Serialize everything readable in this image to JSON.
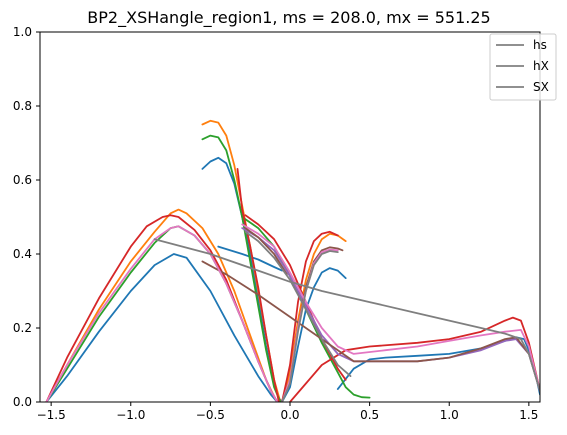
{
  "chart_data": {
    "type": "line",
    "title": "BP2_XSHangle_region1, ms = 208.0, mx = 551.25",
    "xlabel": "",
    "ylabel": "",
    "xlim": [
      -1.57,
      1.57
    ],
    "ylim": [
      0.0,
      1.0
    ],
    "xticks": [
      -1.5,
      -1.0,
      -0.5,
      0.0,
      0.5,
      1.0,
      1.5
    ],
    "xtick_labels": [
      "−1.5",
      "−1.0",
      "−0.5",
      "0.0",
      "0.5",
      "1.0",
      "1.5"
    ],
    "yticks": [
      0.0,
      0.2,
      0.4,
      0.6,
      0.8,
      1.0
    ],
    "ytick_labels": [
      "0.0",
      "0.2",
      "0.4",
      "0.6",
      "0.8",
      "1.0"
    ],
    "grid": false,
    "legend_position": "top-right",
    "legend": [
      {
        "label": "hs",
        "color": "#808080"
      },
      {
        "label": "hX",
        "color": "#808080"
      },
      {
        "label": "SX",
        "color": "#808080"
      }
    ],
    "series": [
      {
        "color": "#1f77b4",
        "points": [
          [
            -1.53,
            0.0
          ],
          [
            -1.4,
            0.07
          ],
          [
            -1.2,
            0.19
          ],
          [
            -1.0,
            0.3
          ],
          [
            -0.85,
            0.37
          ],
          [
            -0.73,
            0.4
          ],
          [
            -0.65,
            0.39
          ],
          [
            -0.5,
            0.3
          ],
          [
            -0.35,
            0.18
          ],
          [
            -0.2,
            0.07
          ],
          [
            -0.12,
            0.02
          ],
          [
            -0.08,
            0.0
          ]
        ]
      },
      {
        "color": "#1f77b4",
        "points": [
          [
            -0.55,
            0.63
          ],
          [
            -0.5,
            0.65
          ],
          [
            -0.45,
            0.66
          ],
          [
            -0.4,
            0.645
          ],
          [
            -0.35,
            0.59
          ],
          [
            -0.3,
            0.5
          ],
          [
            -0.25,
            0.4
          ],
          [
            -0.2,
            0.28
          ],
          [
            -0.15,
            0.15
          ],
          [
            -0.1,
            0.05
          ],
          [
            -0.07,
            0.01
          ],
          [
            -0.05,
            0.0
          ]
        ]
      },
      {
        "color": "#1f77b4",
        "points": [
          [
            -0.05,
            0.0
          ],
          [
            0.0,
            0.04
          ],
          [
            0.05,
            0.15
          ],
          [
            0.1,
            0.25
          ],
          [
            0.15,
            0.31
          ],
          [
            0.2,
            0.35
          ],
          [
            0.25,
            0.362
          ],
          [
            0.3,
            0.355
          ],
          [
            0.35,
            0.335
          ]
        ]
      },
      {
        "color": "#1f77b4",
        "points": [
          [
            0.3,
            0.035
          ],
          [
            0.4,
            0.09
          ],
          [
            0.5,
            0.115
          ],
          [
            0.6,
            0.12
          ],
          [
            0.8,
            0.125
          ],
          [
            1.0,
            0.13
          ],
          [
            1.2,
            0.145
          ],
          [
            1.35,
            0.165
          ],
          [
            1.42,
            0.175
          ],
          [
            1.47,
            0.17
          ],
          [
            1.52,
            0.12
          ],
          [
            1.57,
            0.02
          ]
        ]
      },
      {
        "color": "#1f77b4",
        "points": [
          [
            -0.45,
            0.42
          ],
          [
            -0.3,
            0.4
          ],
          [
            -0.2,
            0.385
          ],
          [
            -0.1,
            0.365
          ],
          [
            -0.05,
            0.355
          ]
        ]
      },
      {
        "color": "#ff7f0e",
        "points": [
          [
            -1.53,
            0.0
          ],
          [
            -1.4,
            0.1
          ],
          [
            -1.2,
            0.25
          ],
          [
            -1.0,
            0.38
          ],
          [
            -0.85,
            0.46
          ],
          [
            -0.75,
            0.51
          ],
          [
            -0.7,
            0.52
          ],
          [
            -0.65,
            0.51
          ],
          [
            -0.55,
            0.47
          ],
          [
            -0.45,
            0.4
          ],
          [
            -0.35,
            0.3
          ],
          [
            -0.25,
            0.18
          ],
          [
            -0.15,
            0.06
          ],
          [
            -0.1,
            0.015
          ],
          [
            -0.08,
            0.0
          ]
        ]
      },
      {
        "color": "#ff7f0e",
        "points": [
          [
            -0.55,
            0.75
          ],
          [
            -0.5,
            0.76
          ],
          [
            -0.45,
            0.755
          ],
          [
            -0.4,
            0.72
          ],
          [
            -0.35,
            0.64
          ],
          [
            -0.3,
            0.53
          ],
          [
            -0.25,
            0.42
          ],
          [
            -0.2,
            0.3
          ],
          [
            -0.15,
            0.18
          ],
          [
            -0.1,
            0.06
          ],
          [
            -0.06,
            0.0
          ]
        ]
      },
      {
        "color": "#ff7f0e",
        "points": [
          [
            -0.05,
            0.0
          ],
          [
            0.0,
            0.08
          ],
          [
            0.05,
            0.22
          ],
          [
            0.1,
            0.33
          ],
          [
            0.15,
            0.4
          ],
          [
            0.2,
            0.44
          ],
          [
            0.25,
            0.455
          ],
          [
            0.3,
            0.45
          ],
          [
            0.35,
            0.435
          ]
        ]
      },
      {
        "color": "#2ca02c",
        "points": [
          [
            -1.53,
            0.0
          ],
          [
            -1.4,
            0.09
          ],
          [
            -1.2,
            0.23
          ],
          [
            -1.0,
            0.35
          ],
          [
            -0.85,
            0.43
          ],
          [
            -0.75,
            0.47
          ],
          [
            -0.7,
            0.475
          ],
          [
            -0.6,
            0.45
          ],
          [
            -0.5,
            0.4
          ],
          [
            -0.4,
            0.32
          ],
          [
            -0.3,
            0.22
          ],
          [
            -0.2,
            0.11
          ],
          [
            -0.12,
            0.03
          ],
          [
            -0.08,
            0.0
          ]
        ]
      },
      {
        "color": "#2ca02c",
        "points": [
          [
            -0.55,
            0.71
          ],
          [
            -0.5,
            0.72
          ],
          [
            -0.45,
            0.715
          ],
          [
            -0.4,
            0.68
          ],
          [
            -0.35,
            0.6
          ],
          [
            -0.3,
            0.5
          ],
          [
            -0.25,
            0.38
          ],
          [
            -0.2,
            0.26
          ],
          [
            -0.15,
            0.14
          ],
          [
            -0.1,
            0.04
          ],
          [
            -0.06,
            0.0
          ]
        ]
      },
      {
        "color": "#2ca02c",
        "points": [
          [
            -0.3,
            0.5
          ],
          [
            -0.2,
            0.47
          ],
          [
            -0.1,
            0.42
          ],
          [
            0.0,
            0.34
          ],
          [
            0.1,
            0.25
          ],
          [
            0.2,
            0.16
          ],
          [
            0.3,
            0.08
          ],
          [
            0.35,
            0.04
          ],
          [
            0.4,
            0.02
          ],
          [
            0.45,
            0.013
          ],
          [
            0.5,
            0.012
          ]
        ]
      },
      {
        "color": "#d62728",
        "points": [
          [
            -1.53,
            0.0
          ],
          [
            -1.4,
            0.12
          ],
          [
            -1.2,
            0.28
          ],
          [
            -1.0,
            0.42
          ],
          [
            -0.9,
            0.475
          ],
          [
            -0.8,
            0.5
          ],
          [
            -0.75,
            0.505
          ],
          [
            -0.7,
            0.5
          ],
          [
            -0.6,
            0.465
          ],
          [
            -0.5,
            0.41
          ],
          [
            -0.4,
            0.33
          ],
          [
            -0.3,
            0.22
          ],
          [
            -0.2,
            0.11
          ],
          [
            -0.12,
            0.03
          ],
          [
            -0.08,
            0.0
          ]
        ]
      },
      {
        "color": "#d62728",
        "points": [
          [
            -0.33,
            0.63
          ],
          [
            -0.3,
            0.52
          ],
          [
            -0.25,
            0.42
          ],
          [
            -0.2,
            0.31
          ],
          [
            -0.15,
            0.18
          ],
          [
            -0.1,
            0.06
          ],
          [
            -0.07,
            0.0
          ]
        ]
      },
      {
        "color": "#d62728",
        "points": [
          [
            -0.28,
            0.505
          ],
          [
            -0.2,
            0.48
          ],
          [
            -0.1,
            0.44
          ],
          [
            0.0,
            0.37
          ],
          [
            0.1,
            0.27
          ],
          [
            0.2,
            0.17
          ],
          [
            0.3,
            0.09
          ],
          [
            0.35,
            0.06
          ]
        ]
      },
      {
        "color": "#d62728",
        "points": [
          [
            -0.05,
            0.0
          ],
          [
            0.0,
            0.1
          ],
          [
            0.05,
            0.27
          ],
          [
            0.1,
            0.38
          ],
          [
            0.15,
            0.435
          ],
          [
            0.2,
            0.455
          ],
          [
            0.25,
            0.46
          ],
          [
            0.3,
            0.45
          ]
        ]
      },
      {
        "color": "#d62728",
        "points": [
          [
            0.0,
            0.0
          ],
          [
            0.1,
            0.05
          ],
          [
            0.2,
            0.1
          ],
          [
            0.35,
            0.14
          ],
          [
            0.5,
            0.15
          ],
          [
            0.8,
            0.16
          ],
          [
            1.0,
            0.17
          ],
          [
            1.2,
            0.19
          ],
          [
            1.35,
            0.22
          ],
          [
            1.4,
            0.228
          ],
          [
            1.45,
            0.22
          ],
          [
            1.5,
            0.16
          ],
          [
            1.57,
            0.03
          ]
        ]
      },
      {
        "color": "#9467bd",
        "points": [
          [
            -0.3,
            0.47
          ],
          [
            -0.2,
            0.445
          ],
          [
            -0.1,
            0.41
          ],
          [
            0.0,
            0.34
          ],
          [
            0.1,
            0.26
          ],
          [
            0.2,
            0.18
          ],
          [
            0.3,
            0.13
          ],
          [
            0.4,
            0.11
          ],
          [
            0.6,
            0.11
          ],
          [
            0.8,
            0.11
          ],
          [
            1.0,
            0.12
          ],
          [
            1.2,
            0.14
          ],
          [
            1.35,
            0.165
          ],
          [
            1.42,
            0.17
          ],
          [
            1.5,
            0.13
          ],
          [
            1.57,
            0.03
          ]
        ]
      },
      {
        "color": "#8c564b",
        "points": [
          [
            -0.55,
            0.38
          ],
          [
            -0.4,
            0.345
          ],
          [
            -0.2,
            0.29
          ],
          [
            0.0,
            0.23
          ],
          [
            0.2,
            0.17
          ],
          [
            0.4,
            0.11
          ],
          [
            0.6,
            0.11
          ],
          [
            0.8,
            0.11
          ],
          [
            1.0,
            0.12
          ],
          [
            1.2,
            0.145
          ],
          [
            1.35,
            0.17
          ],
          [
            1.42,
            0.175
          ],
          [
            1.5,
            0.13
          ],
          [
            1.57,
            0.03
          ]
        ]
      },
      {
        "color": "#8c564b",
        "points": [
          [
            -0.05,
            0.0
          ],
          [
            0.0,
            0.06
          ],
          [
            0.05,
            0.2
          ],
          [
            0.1,
            0.31
          ],
          [
            0.15,
            0.38
          ],
          [
            0.2,
            0.41
          ],
          [
            0.25,
            0.418
          ],
          [
            0.3,
            0.415
          ],
          [
            0.33,
            0.41
          ]
        ]
      },
      {
        "color": "#8c564b",
        "points": [
          [
            -0.28,
            0.47
          ],
          [
            -0.2,
            0.445
          ],
          [
            -0.1,
            0.4
          ],
          [
            -0.02,
            0.345
          ]
        ]
      },
      {
        "color": "#e377c2",
        "points": [
          [
            -1.53,
            0.0
          ],
          [
            -1.4,
            0.1
          ],
          [
            -1.2,
            0.24
          ],
          [
            -1.0,
            0.36
          ],
          [
            -0.85,
            0.44
          ],
          [
            -0.75,
            0.47
          ],
          [
            -0.7,
            0.475
          ],
          [
            -0.6,
            0.45
          ],
          [
            -0.5,
            0.4
          ],
          [
            -0.4,
            0.32
          ],
          [
            -0.3,
            0.22
          ],
          [
            -0.2,
            0.11
          ],
          [
            -0.12,
            0.03
          ],
          [
            -0.08,
            0.0
          ]
        ]
      },
      {
        "color": "#e377c2",
        "points": [
          [
            -0.3,
            0.48
          ],
          [
            -0.2,
            0.455
          ],
          [
            -0.1,
            0.42
          ],
          [
            0.0,
            0.35
          ],
          [
            0.1,
            0.27
          ],
          [
            0.2,
            0.2
          ],
          [
            0.3,
            0.15
          ],
          [
            0.4,
            0.13
          ],
          [
            0.6,
            0.14
          ],
          [
            0.8,
            0.15
          ],
          [
            1.0,
            0.165
          ],
          [
            1.2,
            0.18
          ],
          [
            1.35,
            0.19
          ],
          [
            1.45,
            0.195
          ],
          [
            1.5,
            0.15
          ],
          [
            1.57,
            0.03
          ]
        ]
      },
      {
        "color": "#e377c2",
        "points": [
          [
            -0.05,
            0.0
          ],
          [
            0.0,
            0.06
          ],
          [
            0.05,
            0.2
          ],
          [
            0.1,
            0.3
          ],
          [
            0.15,
            0.375
          ],
          [
            0.2,
            0.405
          ],
          [
            0.25,
            0.412
          ],
          [
            0.3,
            0.41
          ]
        ]
      },
      {
        "color": "#7f7f7f",
        "points": [
          [
            -0.85,
            0.44
          ],
          [
            -0.5,
            0.4
          ],
          [
            -0.2,
            0.355
          ],
          [
            0.0,
            0.325
          ],
          [
            0.2,
            0.3
          ],
          [
            0.5,
            0.27
          ],
          [
            0.8,
            0.24
          ],
          [
            1.0,
            0.22
          ],
          [
            1.2,
            0.2
          ],
          [
            1.35,
            0.185
          ],
          [
            1.45,
            0.17
          ],
          [
            1.5,
            0.13
          ],
          [
            1.57,
            0.03
          ]
        ]
      },
      {
        "color": "#7f7f7f",
        "points": [
          [
            -0.28,
            0.46
          ],
          [
            -0.2,
            0.435
          ],
          [
            -0.1,
            0.39
          ],
          [
            0.0,
            0.33
          ],
          [
            0.1,
            0.25
          ],
          [
            0.2,
            0.17
          ],
          [
            0.3,
            0.1
          ],
          [
            0.38,
            0.07
          ]
        ]
      },
      {
        "color": "#7f7f7f",
        "points": [
          [
            -0.05,
            0.0
          ],
          [
            0.0,
            0.05
          ],
          [
            0.05,
            0.19
          ],
          [
            0.1,
            0.3
          ],
          [
            0.15,
            0.37
          ],
          [
            0.2,
            0.4
          ],
          [
            0.25,
            0.408
          ],
          [
            0.3,
            0.405
          ]
        ]
      }
    ]
  }
}
